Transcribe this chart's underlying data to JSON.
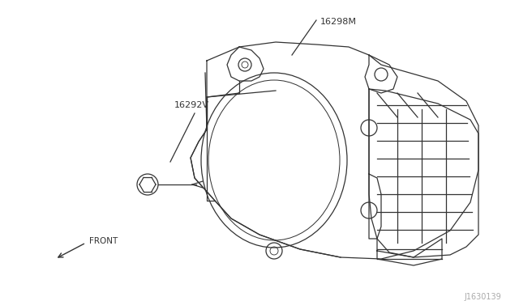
{
  "bg_color": "#ffffff",
  "line_color": "#333333",
  "text_color": "#333333",
  "label1": "16298M",
  "label2": "16292V",
  "label3": "FRONT",
  "watermark": "J1630139",
  "figsize": [
    6.4,
    3.72
  ],
  "dpi": 100
}
